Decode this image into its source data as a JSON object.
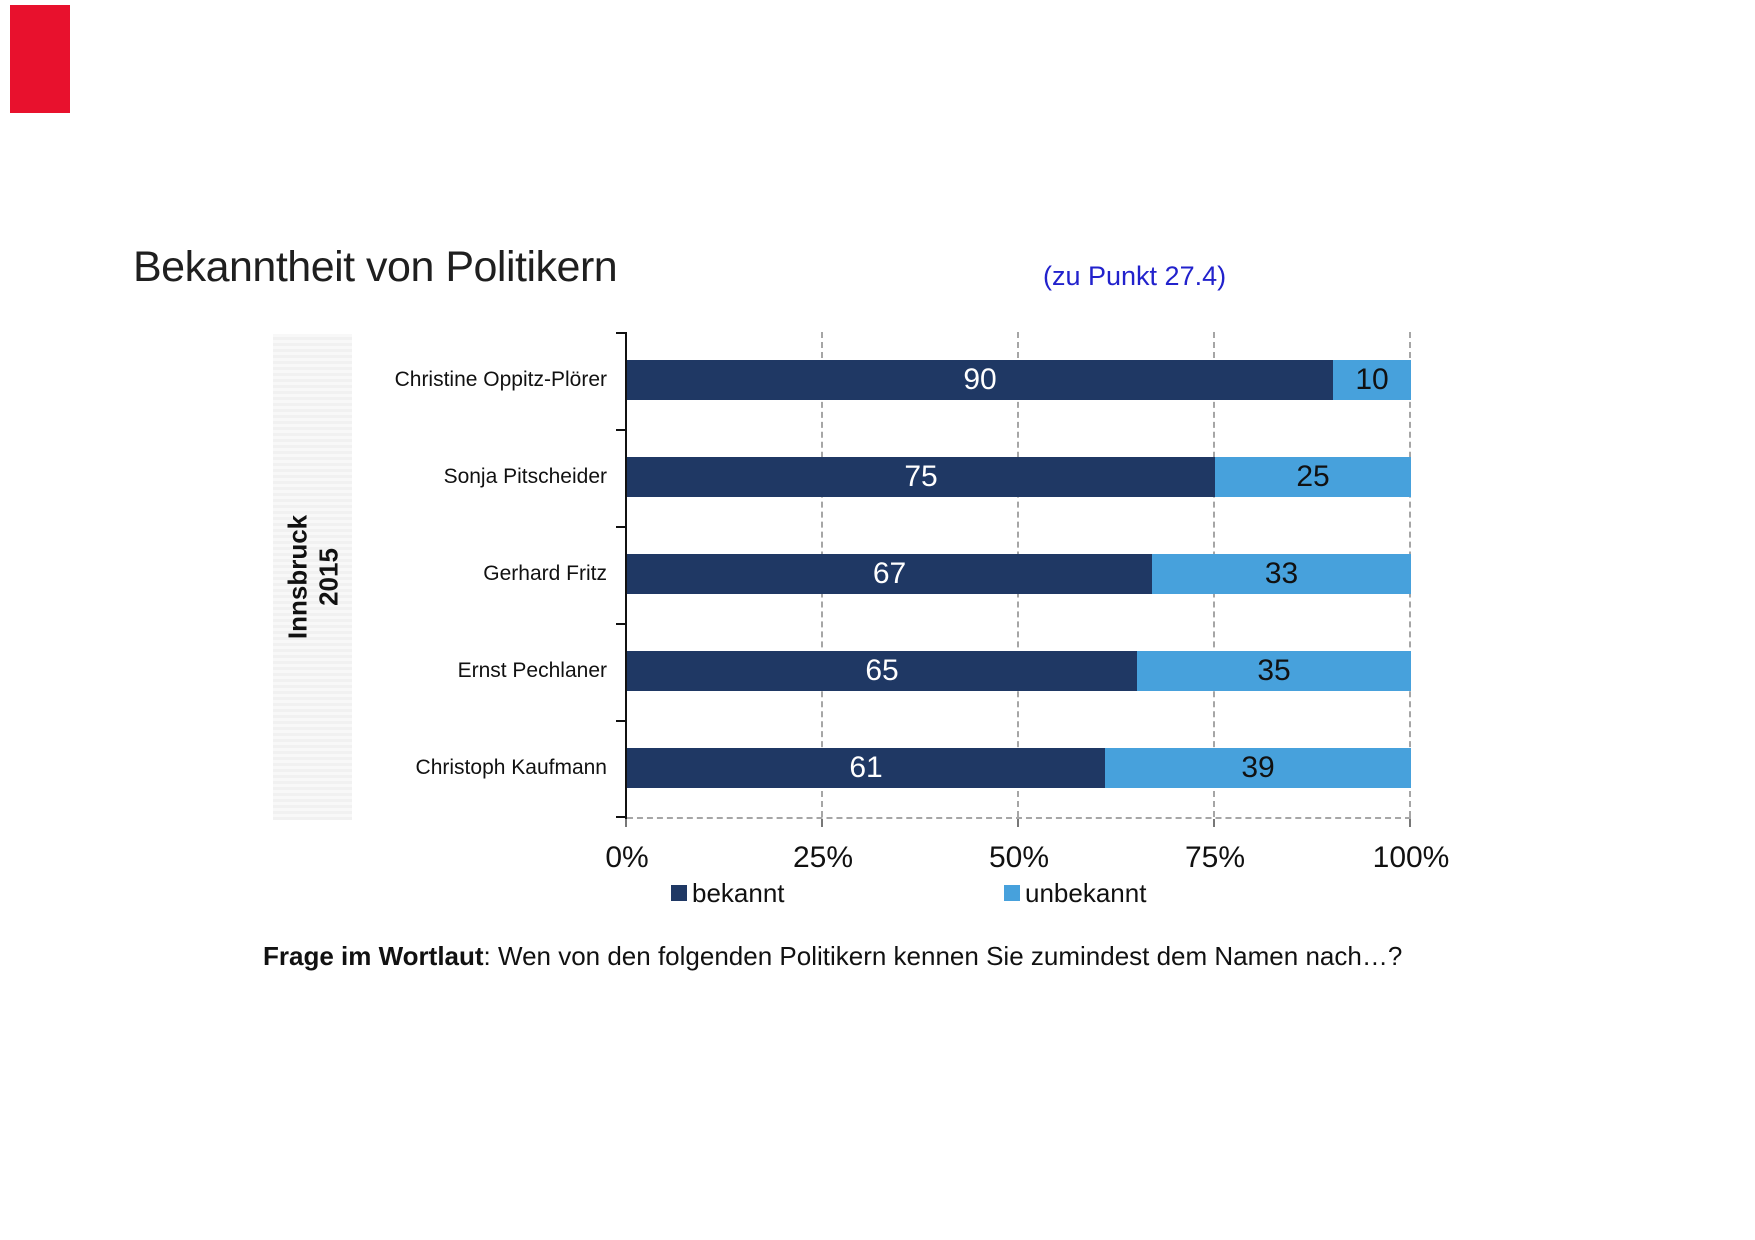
{
  "page": {
    "background": "#ffffff"
  },
  "corner_flag": {
    "color": "#e8112d"
  },
  "header": {
    "title": "Bekanntheit von Politikern",
    "note": "(zu Punkt 27.4)",
    "note_color": "#2222cc"
  },
  "group_band": {
    "line1": "Innsbruck",
    "line2": "2015"
  },
  "chart_data": {
    "type": "bar",
    "orientation": "horizontal",
    "stacked": true,
    "title": "Bekanntheit von Politikern",
    "categories": [
      "Christine Oppitz-Plörer",
      "Sonja Pitscheider",
      "Gerhard Fritz",
      "Ernst Pechlaner",
      "Christoph Kaufmann"
    ],
    "series": [
      {
        "name": "bekannt",
        "color": "#1f3864",
        "value_label_color": "#ffffff",
        "values": [
          90,
          75,
          67,
          65,
          61
        ]
      },
      {
        "name": "unbekannt",
        "color": "#47a1dc",
        "value_label_color": "#111111",
        "values": [
          10,
          25,
          33,
          35,
          39
        ]
      }
    ],
    "x_axis": {
      "tick_labels": [
        "0%",
        "25%",
        "50%",
        "75%",
        "100%"
      ],
      "min": 0,
      "max": 100
    },
    "grid": {
      "vertical_dashed_at": [
        25,
        50,
        75,
        100
      ],
      "color": "#a6a6a6"
    },
    "legend_position": "bottom"
  },
  "footer": {
    "bold": "Frage im Wortlaut",
    "rest": ": Wen von den folgenden Politikern kennen Sie zumindest dem Namen nach…?"
  }
}
